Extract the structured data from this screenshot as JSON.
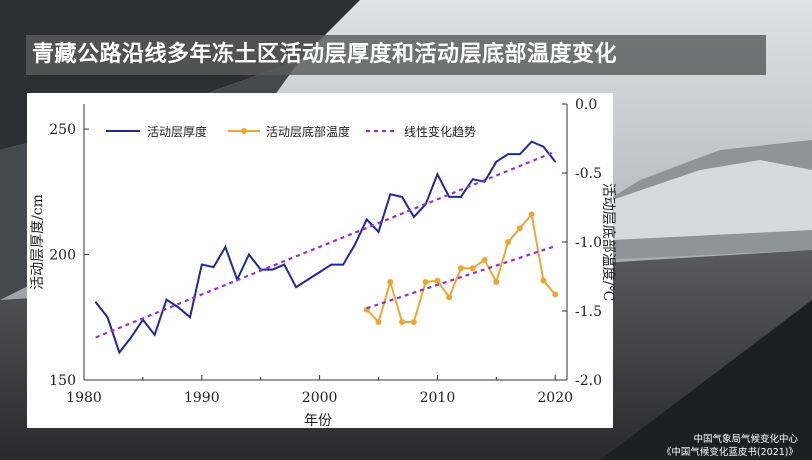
{
  "page": {
    "title": "青藏公路沿线多年冻土区活动层厚度和活动层底部温度变化",
    "credit_line1": "中国气象局气候变化中心",
    "credit_line2": "《中国气候变化蓝皮书(2021)》"
  },
  "chart_data": {
    "type": "line",
    "xlabel": "年份",
    "ylabel_left": "活动层厚度/cm",
    "ylabel_right": "活动层底部温度/℃",
    "xlim": [
      1980,
      2021
    ],
    "ylim_left": [
      150,
      260
    ],
    "ylim_right": [
      -2.0,
      0.0
    ],
    "x_ticks": [
      1980,
      1990,
      2000,
      2010,
      2020
    ],
    "y_ticks_left": [
      150,
      200,
      250
    ],
    "y_ticks_right": [
      0.0,
      -0.5,
      -1.0,
      -1.5,
      -2.0
    ],
    "y_tick_labels_right": [
      "0.0",
      "-0.5",
      "-1.0",
      "-1.5",
      "-2.0"
    ],
    "legend_position": "top",
    "legend": [
      "活动层厚度",
      "活动层底部温度",
      "线性变化趋势"
    ],
    "colors": {
      "thickness": "#1f2a94",
      "temperature": "#e8a838",
      "trend": "#9b30c8",
      "axis": "#333333"
    },
    "series": [
      {
        "name": "活动层厚度",
        "axis": "left",
        "x": [
          1981,
          1982,
          1983,
          1984,
          1985,
          1986,
          1987,
          1988,
          1989,
          1990,
          1991,
          1992,
          1993,
          1994,
          1995,
          1996,
          1997,
          1998,
          1999,
          2000,
          2001,
          2002,
          2003,
          2004,
          2005,
          2006,
          2007,
          2008,
          2009,
          2010,
          2011,
          2012,
          2013,
          2014,
          2015,
          2016,
          2017,
          2018,
          2019,
          2020
        ],
        "values": [
          181,
          175,
          161,
          167,
          174,
          168,
          182,
          179,
          175,
          196,
          195,
          203,
          190,
          200,
          194,
          194,
          196,
          187,
          190,
          193,
          196,
          196,
          204,
          214,
          209,
          224,
          223,
          215,
          220,
          232,
          223,
          223,
          230,
          229,
          237,
          240,
          240,
          245,
          243,
          237
        ]
      },
      {
        "name": "活动层底部温度",
        "axis": "right",
        "x": [
          2004,
          2005,
          2006,
          2007,
          2008,
          2009,
          2010,
          2011,
          2012,
          2013,
          2014,
          2015,
          2016,
          2017,
          2018,
          2019,
          2020
        ],
        "values": [
          -1.49,
          -1.58,
          -1.29,
          -1.58,
          -1.58,
          -1.29,
          -1.28,
          -1.4,
          -1.19,
          -1.19,
          -1.13,
          -1.29,
          -1.0,
          -0.9,
          -0.8,
          -1.28,
          -1.38
        ]
      },
      {
        "name": "线性变化趋势",
        "axis": "left",
        "style": "dashed",
        "x": [
          1981,
          2020
        ],
        "values": [
          167,
          241
        ]
      },
      {
        "name": "线性变化趋势",
        "axis": "right",
        "style": "dashed",
        "x": [
          2004,
          2020
        ],
        "values": [
          -1.48,
          -1.03
        ]
      }
    ]
  }
}
